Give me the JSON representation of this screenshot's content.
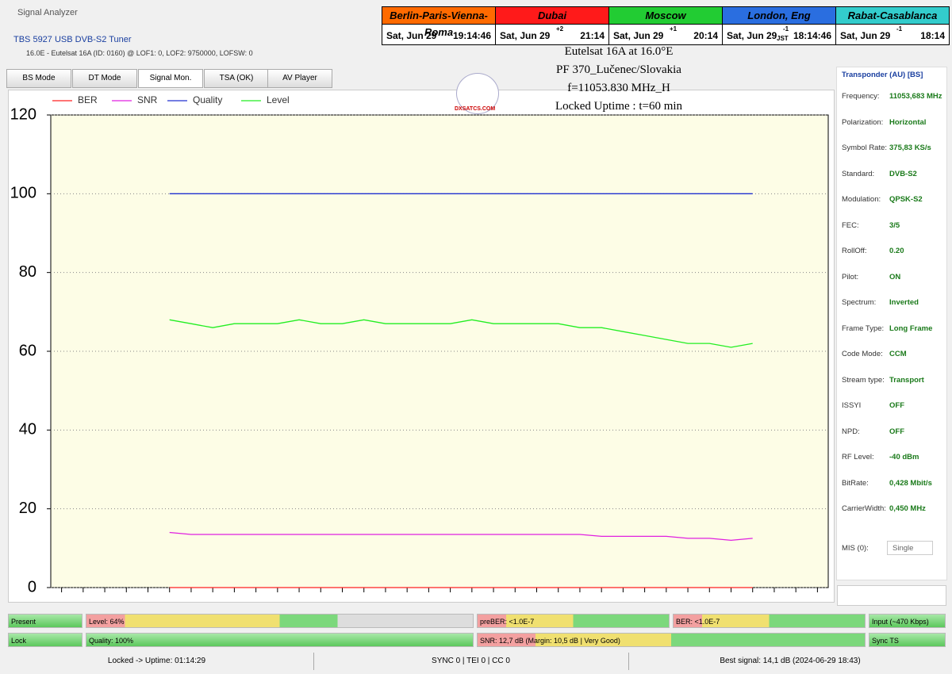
{
  "window": {
    "title": "Signal Analyzer",
    "tuner": "TBS 5927 USB DVB-S2 Tuner",
    "info": "16.0E - Eutelsat 16A (ID: 0160) @ LOF1: 0, LOF2: 9750000, LOFSW: 0"
  },
  "clocks": [
    {
      "city": "Berlin-Paris-Vienna-Roma",
      "color": "#ff6a00",
      "date": "Sat, Jun 29",
      "offset": null,
      "zone": null,
      "time": "19:14:46"
    },
    {
      "city": "Dubai",
      "color": "#ff1a1a",
      "date": "Sat, Jun 29",
      "offset": "+2",
      "zone": null,
      "time": "21:14"
    },
    {
      "city": "Moscow",
      "color": "#22cc33",
      "date": "Sat, Jun 29",
      "offset": "+1",
      "zone": null,
      "time": "20:14"
    },
    {
      "city": "London, Eng",
      "color": "#2a6ee0",
      "date": "Sat, Jun 29",
      "offset": "-1",
      "zone": "JST",
      "time": "18:14:46"
    },
    {
      "city": "Rabat-Casablanca",
      "color": "#33cccc",
      "date": "Sat, Jun 29",
      "offset": "-1",
      "zone": null,
      "time": "18:14"
    }
  ],
  "overlay": {
    "lines": [
      "Eutelsat 16A at 16.0°E",
      "PF 370_Lučenec/Slovakia",
      "f=11053.830 MHz_H",
      "Locked Uptime : t=60 min"
    ],
    "logo": "DXSATCS.COM"
  },
  "tabs": [
    "BS Mode",
    "DT Mode",
    "Signal Mon.",
    "TSA (OK)",
    "AV Player"
  ],
  "chart_data": {
    "type": "line",
    "categories": [
      null,
      null,
      null,
      null,
      null,
      null,
      null,
      null,
      null,
      null,
      null,
      null,
      null,
      null,
      null,
      null,
      null,
      null,
      null,
      null,
      null,
      null,
      null,
      null,
      null,
      null,
      null,
      null,
      null,
      null,
      null,
      null,
      null,
      null,
      null,
      null
    ],
    "series": [
      {
        "name": "BER",
        "color": "#ff2020",
        "values": [
          null,
          null,
          null,
          null,
          null,
          0,
          0,
          0,
          0,
          0,
          0,
          0,
          0,
          0,
          0,
          0,
          0,
          0,
          0,
          0,
          0,
          0,
          0,
          0,
          0,
          0,
          0,
          0,
          0,
          0,
          0,
          0,
          0,
          null,
          null,
          null
        ]
      },
      {
        "name": "SNR",
        "color": "#e020e0",
        "values": [
          null,
          null,
          null,
          null,
          null,
          14,
          13.5,
          13.5,
          13.5,
          13.5,
          13.5,
          13.5,
          13.5,
          13.5,
          13.5,
          13.5,
          13.5,
          13.5,
          13.5,
          13.5,
          13.5,
          13.5,
          13.5,
          13.5,
          13.5,
          13,
          13,
          13,
          13,
          12.5,
          12.5,
          12,
          12.5,
          null,
          null,
          null
        ]
      },
      {
        "name": "Quality",
        "color": "#2030d0",
        "values": [
          null,
          null,
          null,
          null,
          null,
          100,
          100,
          100,
          100,
          100,
          100,
          100,
          100,
          100,
          100,
          100,
          100,
          100,
          100,
          100,
          100,
          100,
          100,
          100,
          100,
          100,
          100,
          100,
          100,
          100,
          100,
          100,
          100,
          null,
          null,
          null
        ]
      },
      {
        "name": "Level",
        "color": "#22ee22",
        "values": [
          null,
          null,
          null,
          null,
          null,
          68,
          67,
          66,
          67,
          67,
          67,
          68,
          67,
          67,
          68,
          67,
          67,
          67,
          67,
          68,
          67,
          67,
          67,
          67,
          66,
          66,
          65,
          64,
          63,
          62,
          62,
          61,
          62,
          null,
          null,
          null
        ]
      }
    ],
    "ylim": [
      0,
      120
    ],
    "yticks": [
      0,
      20,
      40,
      60,
      80,
      100,
      120
    ],
    "grid": true,
    "legend": "top-left"
  },
  "transponder": {
    "title": "Transponder (AU) [BS]",
    "rows": [
      [
        "Frequency:",
        "11053,683 MHz"
      ],
      [
        "Polarization:",
        "Horizontal"
      ],
      [
        "Symbol Rate:",
        "375,83 KS/s"
      ],
      [
        "Standard:",
        "DVB-S2"
      ],
      [
        "Modulation:",
        "QPSK-S2"
      ],
      [
        "FEC:",
        "3/5"
      ],
      [
        "RollOff:",
        "0.20"
      ],
      [
        "Pilot:",
        "ON"
      ],
      [
        "Spectrum:",
        "Inverted"
      ],
      [
        "Frame Type:",
        "Long Frame"
      ],
      [
        "Code Mode:",
        "CCM"
      ],
      [
        "Stream type:",
        "Transport"
      ],
      [
        "ISSYI",
        "OFF"
      ],
      [
        "NPD:",
        "OFF"
      ],
      [
        "RF Level:",
        "-40 dBm"
      ],
      [
        "BitRate:",
        "0,428 Mbit/s"
      ],
      [
        "CarrierWidth:",
        "0,450 MHz"
      ]
    ],
    "mis_label": "MIS (0):",
    "mis_value": "Single"
  },
  "status": {
    "row1": [
      "Present",
      "Level: 64%",
      "preBER: <1.0E-7",
      "BER: <1.0E-7",
      "Input (~470 Kbps)"
    ],
    "row2": [
      "Lock",
      "Quality: 100%",
      "SNR: 12,7 dB (Margin: 10,5 dB | Very Good)",
      "Sync TS"
    ]
  },
  "footer": [
    "Locked -> Uptime: 01:14:29",
    "SYNC 0 | TEI 0 | CC 0",
    "Best signal: 14,1 dB (2024-06-29 18:43)"
  ]
}
